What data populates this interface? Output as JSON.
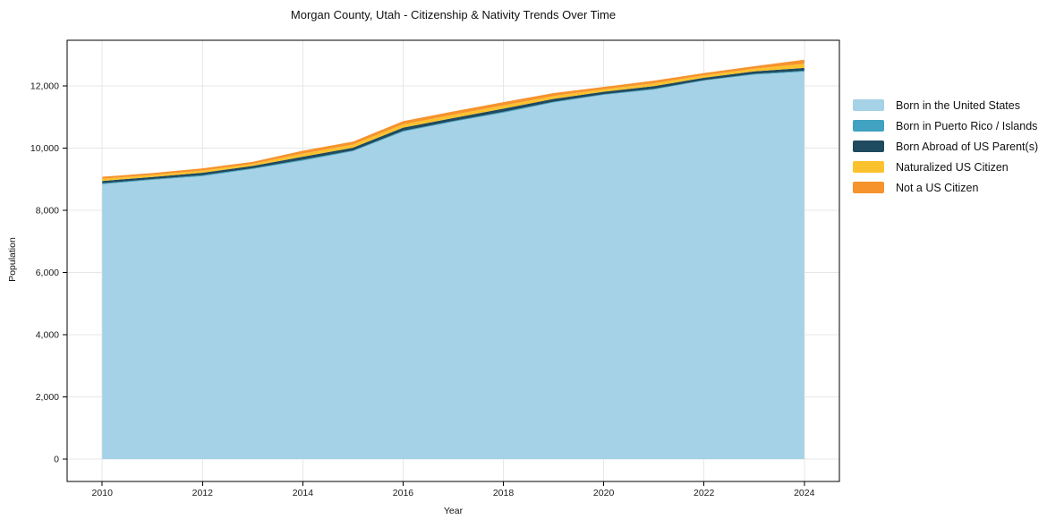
{
  "figure": {
    "title": "Morgan County, Utah - Citizenship & Nativity Trends Over Time",
    "xlabel": "Year",
    "ylabel": "Population"
  },
  "colors": {
    "background": "#ffffff",
    "grid": "#e7e7e7",
    "spine": "#000000",
    "tick_text": "#1a1a1a"
  },
  "chart_data": {
    "type": "area",
    "stacked": true,
    "title": "Morgan County, Utah - Citizenship & Nativity Trends Over Time",
    "xlabel": "Year",
    "ylabel": "Population",
    "x": [
      2010,
      2011,
      2012,
      2013,
      2014,
      2015,
      2016,
      2017,
      2018,
      2019,
      2020,
      2021,
      2022,
      2023,
      2024
    ],
    "xticks": [
      2010,
      2012,
      2014,
      2016,
      2018,
      2020,
      2022,
      2024
    ],
    "yticks": [
      0,
      2000,
      4000,
      6000,
      8000,
      10000,
      12000
    ],
    "xlim": [
      2009.3,
      2024.7
    ],
    "ylim": [
      -720,
      13470
    ],
    "grid": true,
    "legend_position": "right-outside",
    "series": [
      {
        "name": "Born in the United States",
        "color": "#a5d2e6",
        "values": [
          8840,
          8980,
          9100,
          9330,
          9600,
          9900,
          10530,
          10850,
          11140,
          11470,
          11715,
          11885,
          12170,
          12365,
          12460
        ]
      },
      {
        "name": "Born in Puerto Rico / Islands",
        "color": "#41a2c1",
        "values": [
          30,
          25,
          30,
          25,
          30,
          25,
          30,
          25,
          30,
          25,
          20,
          25,
          20,
          25,
          30
        ]
      },
      {
        "name": "Born Abroad of US Parent(s)",
        "color": "#1f4a5f",
        "values": [
          75,
          70,
          80,
          75,
          95,
          90,
          100,
          95,
          100,
          90,
          80,
          85,
          75,
          80,
          90
        ]
      },
      {
        "name": "Naturalized US Citizen",
        "color": "#fcc22e",
        "values": [
          70,
          65,
          70,
          65,
          100,
          100,
          105,
          105,
          105,
          95,
          80,
          90,
          80,
          85,
          135
        ]
      },
      {
        "name": "Not a US Citizen",
        "color": "#f6932d",
        "values": [
          65,
          60,
          70,
          65,
          95,
          95,
          105,
          105,
          105,
          90,
          75,
          85,
          70,
          80,
          130
        ]
      }
    ]
  }
}
